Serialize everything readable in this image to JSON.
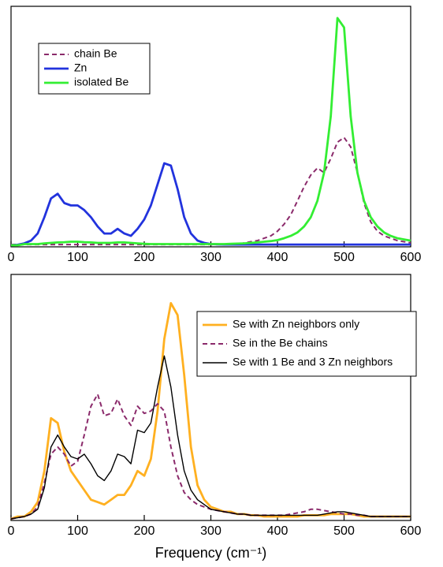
{
  "chart_data": [
    {
      "type": "line",
      "legend": "upper left",
      "ylim": [
        0,
        1
      ],
      "xlim": [
        0,
        600
      ],
      "xticks": [
        0,
        100,
        200,
        300,
        400,
        500,
        600
      ],
      "x": [
        0,
        10,
        20,
        30,
        40,
        50,
        60,
        70,
        80,
        90,
        100,
        110,
        120,
        130,
        140,
        150,
        160,
        170,
        180,
        190,
        200,
        210,
        220,
        230,
        240,
        250,
        260,
        270,
        280,
        290,
        300,
        310,
        320,
        330,
        340,
        350,
        360,
        370,
        380,
        390,
        400,
        410,
        420,
        430,
        440,
        450,
        460,
        470,
        480,
        490,
        500,
        510,
        520,
        530,
        540,
        550,
        560,
        570,
        580,
        590,
        600
      ],
      "series": [
        {
          "name": "chain Be",
          "color": "#8b2a6b",
          "dash": true,
          "values": [
            0.003,
            0.003,
            0.003,
            0.003,
            0.003,
            0.003,
            0.003,
            0.003,
            0.003,
            0.003,
            0.003,
            0.003,
            0.003,
            0.003,
            0.003,
            0.003,
            0.003,
            0.003,
            0.003,
            0.003,
            0.003,
            0.003,
            0.003,
            0.003,
            0.003,
            0.003,
            0.003,
            0.003,
            0.003,
            0.003,
            0.003,
            0.003,
            0.003,
            0.003,
            0.003,
            0.01,
            0.015,
            0.02,
            0.03,
            0.04,
            0.06,
            0.09,
            0.13,
            0.19,
            0.25,
            0.3,
            0.33,
            0.31,
            0.37,
            0.44,
            0.46,
            0.42,
            0.31,
            0.18,
            0.1,
            0.06,
            0.04,
            0.03,
            0.02,
            0.015,
            0.01
          ]
        },
        {
          "name": "Zn",
          "color": "#2233dd",
          "dash": false,
          "values": [
            0,
            0.002,
            0.008,
            0.02,
            0.05,
            0.12,
            0.2,
            0.22,
            0.18,
            0.17,
            0.17,
            0.15,
            0.12,
            0.08,
            0.05,
            0.05,
            0.07,
            0.05,
            0.04,
            0.07,
            0.11,
            0.17,
            0.26,
            0.35,
            0.34,
            0.24,
            0.12,
            0.05,
            0.02,
            0.01,
            0.005,
            0.004,
            0.003,
            0.003,
            0.003,
            0.003,
            0.003,
            0.003,
            0.003,
            0.003,
            0.003,
            0.003,
            0.003,
            0.003,
            0.003,
            0.003,
            0.003,
            0.003,
            0.003,
            0.003,
            0.003,
            0.003,
            0.003,
            0.003,
            0.003,
            0.003,
            0.003,
            0.003,
            0.003,
            0.003,
            0.003
          ]
        },
        {
          "name": "isolated Be",
          "color": "#33ee33",
          "dash": false,
          "values": [
            0,
            0,
            0.005,
            0.005,
            0.005,
            0.008,
            0.01,
            0.012,
            0.013,
            0.015,
            0.015,
            0.013,
            0.012,
            0.01,
            0.01,
            0.01,
            0.012,
            0.012,
            0.01,
            0.008,
            0.006,
            0.005,
            0.005,
            0.005,
            0.005,
            0.005,
            0.005,
            0.005,
            0.005,
            0.005,
            0.005,
            0.005,
            0.005,
            0.006,
            0.007,
            0.008,
            0.01,
            0.012,
            0.015,
            0.018,
            0.022,
            0.03,
            0.04,
            0.055,
            0.08,
            0.12,
            0.19,
            0.31,
            0.55,
            0.97,
            0.93,
            0.55,
            0.31,
            0.19,
            0.12,
            0.08,
            0.055,
            0.04,
            0.03,
            0.025,
            0.02
          ]
        }
      ]
    },
    {
      "type": "line",
      "legend": "upper right",
      "ylim": [
        0,
        1
      ],
      "xlabel": "Frequency (cm⁻¹)",
      "xlim": [
        0,
        600
      ],
      "xticks": [
        0,
        100,
        200,
        300,
        400,
        500,
        600
      ],
      "x": [
        0,
        10,
        20,
        30,
        40,
        50,
        60,
        70,
        80,
        90,
        100,
        110,
        120,
        130,
        140,
        150,
        160,
        170,
        180,
        190,
        200,
        210,
        220,
        230,
        240,
        250,
        260,
        270,
        280,
        290,
        300,
        310,
        320,
        330,
        340,
        350,
        360,
        370,
        380,
        390,
        400,
        410,
        420,
        430,
        440,
        450,
        460,
        470,
        480,
        490,
        500,
        510,
        520,
        530,
        540,
        550,
        560,
        570,
        580,
        590,
        600
      ],
      "series": [
        {
          "name": "Se with Zn neighbors only",
          "color": "#ffb020",
          "dash": false,
          "values": [
            0,
            0.01,
            0.01,
            0.03,
            0.07,
            0.2,
            0.42,
            0.4,
            0.28,
            0.2,
            0.16,
            0.12,
            0.08,
            0.07,
            0.06,
            0.08,
            0.1,
            0.1,
            0.14,
            0.2,
            0.18,
            0.25,
            0.45,
            0.75,
            0.9,
            0.85,
            0.6,
            0.3,
            0.14,
            0.08,
            0.05,
            0.04,
            0.03,
            0.03,
            0.02,
            0.02,
            0.015,
            0.015,
            0.01,
            0.01,
            0.01,
            0.01,
            0.01,
            0.01,
            0.015,
            0.015,
            0.015,
            0.015,
            0.02,
            0.02,
            0.02,
            0.02,
            0.015,
            0.01,
            0.01,
            0.01,
            0.01,
            0.01,
            0.01,
            0.01,
            0.01
          ]
        },
        {
          "name": "Se in the Be chains",
          "color": "#8b2a6b",
          "dash": true,
          "values": [
            0,
            0.005,
            0.01,
            0.02,
            0.05,
            0.15,
            0.27,
            0.3,
            0.27,
            0.22,
            0.24,
            0.35,
            0.47,
            0.52,
            0.43,
            0.44,
            0.5,
            0.43,
            0.39,
            0.47,
            0.44,
            0.45,
            0.48,
            0.45,
            0.3,
            0.18,
            0.11,
            0.08,
            0.06,
            0.05,
            0.04,
            0.035,
            0.03,
            0.025,
            0.02,
            0.02,
            0.015,
            0.015,
            0.015,
            0.015,
            0.015,
            0.015,
            0.02,
            0.025,
            0.03,
            0.04,
            0.04,
            0.035,
            0.03,
            0.025,
            0.02,
            0.02,
            0.015,
            0.015,
            0.01,
            0.01,
            0.01,
            0.01,
            0.01,
            0.01,
            0.01
          ]
        },
        {
          "name": "Se with 1 Be and 3 Zn neighbors",
          "color": "#000000",
          "dash": false,
          "values": [
            0,
            0.005,
            0.01,
            0.02,
            0.04,
            0.13,
            0.3,
            0.35,
            0.3,
            0.26,
            0.25,
            0.27,
            0.23,
            0.18,
            0.16,
            0.2,
            0.27,
            0.26,
            0.23,
            0.37,
            0.36,
            0.4,
            0.55,
            0.68,
            0.55,
            0.35,
            0.2,
            0.12,
            0.08,
            0.06,
            0.04,
            0.035,
            0.03,
            0.025,
            0.02,
            0.02,
            0.015,
            0.015,
            0.015,
            0.015,
            0.015,
            0.015,
            0.015,
            0.015,
            0.015,
            0.015,
            0.015,
            0.02,
            0.025,
            0.03,
            0.03,
            0.025,
            0.02,
            0.015,
            0.01,
            0.01,
            0.01,
            0.01,
            0.01,
            0.01,
            0.01
          ]
        }
      ]
    }
  ]
}
